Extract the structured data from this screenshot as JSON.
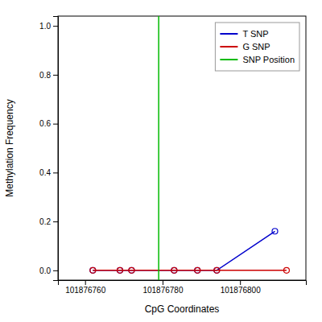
{
  "chart_data": {
    "type": "line",
    "xlabel": "CpG Coordinates",
    "ylabel": "Methylation Frequency",
    "xlim": [
      101876753,
      101876817
    ],
    "ylim": [
      -0.04,
      1.04
    ],
    "xticks": [
      101876760,
      101876780,
      101876800
    ],
    "yticks": [
      {
        "value": 0.0,
        "label": "0.0"
      },
      0.2,
      0.4,
      0.6,
      0.8,
      {
        "value": 1.0,
        "label": "1.0"
      }
    ],
    "grid": false,
    "legend": "upper right",
    "series": [
      {
        "name": "T SNP",
        "color": "#0000cc",
        "marker": "circle",
        "x": [
          101876762,
          101876769,
          101876772,
          101876783,
          101876789,
          101876794,
          101876809
        ],
        "values": [
          0.0,
          0.0,
          0.0,
          0.0,
          0.0,
          0.0,
          0.16
        ]
      },
      {
        "name": "G SNP",
        "color": "#cc0000",
        "marker": "circle",
        "x": [
          101876762,
          101876769,
          101876772,
          101876783,
          101876789,
          101876794,
          101876812
        ],
        "values": [
          0.0,
          0.0,
          0.0,
          0.0,
          0.0,
          0.0,
          0.0
        ]
      },
      {
        "name": "SNP Position",
        "type": "vline",
        "color": "#00bb00",
        "x": [
          101876779
        ]
      }
    ]
  }
}
